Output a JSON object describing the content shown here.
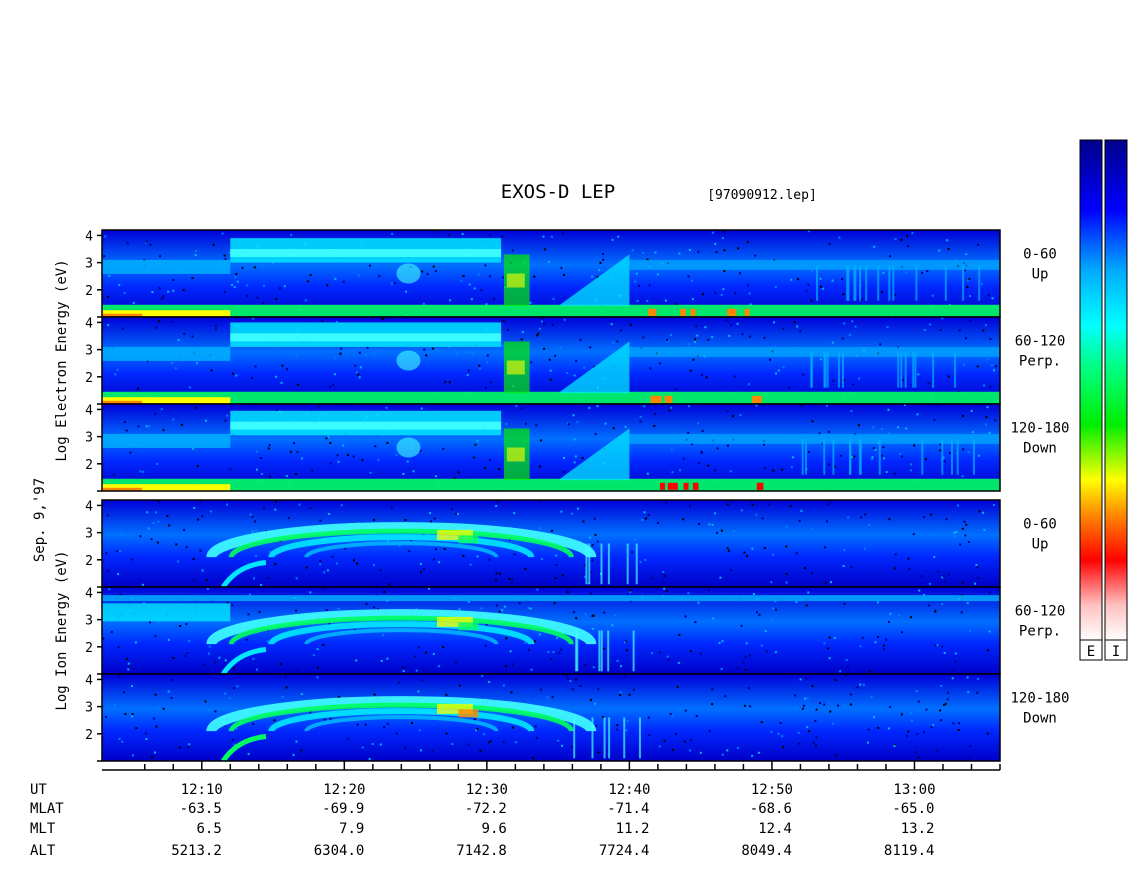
{
  "chart_data": {
    "type": "heatmap",
    "title": "EXOS-D LEP",
    "file_label": "[97090912.lep]",
    "date_label": "Sep. 9,'97",
    "x": {
      "axis": "UT",
      "tick_labels": [
        "12:10",
        "12:20",
        "12:30",
        "12:40",
        "12:50",
        "13:00"
      ],
      "tick_minutes": [
        10,
        20,
        30,
        40,
        50,
        60
      ],
      "range_minutes": [
        3,
        66
      ]
    },
    "groups": [
      {
        "species": "Electron",
        "ylabel": "Log  Electron  Energy (eV)",
        "panels": [
          {
            "angle_range": "0-60",
            "direction": "Up",
            "ylim": [
              1,
              4.2
            ],
            "yticks": [
              "2",
              "3",
              "4"
            ]
          },
          {
            "angle_range": "60-120",
            "direction": "Perp.",
            "ylim": [
              1,
              4.2
            ],
            "yticks": [
              "2",
              "3",
              "4"
            ]
          },
          {
            "angle_range": "120-180",
            "direction": "Down",
            "ylim": [
              1,
              4.2
            ],
            "yticks": [
              "2",
              "3",
              "4"
            ]
          }
        ]
      },
      {
        "species": "Ion",
        "ylabel": "Log  Ion  Energy (eV)",
        "panels": [
          {
            "angle_range": "0-60",
            "direction": "Up",
            "ylim": [
              1,
              4.2
            ],
            "yticks": [
              "2",
              "3",
              "4"
            ]
          },
          {
            "angle_range": "60-120",
            "direction": "Perp.",
            "ylim": [
              1,
              4.2
            ],
            "yticks": [
              "2",
              "3",
              "4"
            ]
          },
          {
            "angle_range": "120-180",
            "direction": "Down",
            "ylim": [
              1,
              4.2
            ],
            "yticks": [
              "2",
              "3",
              "4"
            ]
          }
        ]
      }
    ],
    "ephemeris": [
      {
        "label": "UT",
        "values": [
          "",
          "",
          "",
          "",
          "",
          ""
        ]
      },
      {
        "label": "MLAT",
        "values": [
          "-63.5",
          "-69.9",
          "-72.2",
          "-71.4",
          "-68.6",
          "-65.0"
        ]
      },
      {
        "label": "MLT",
        "values": [
          "6.5",
          "7.9",
          "9.6",
          "11.2",
          "12.4",
          "13.2"
        ]
      },
      {
        "label": "ALT",
        "values": [
          "5213.2",
          "6304.0",
          "7142.8",
          "7724.4",
          "8049.4",
          "8119.4"
        ]
      }
    ],
    "colorbars": [
      {
        "label": "E"
      },
      {
        "label": "I"
      }
    ],
    "colormap": [
      "#00008a",
      "#0000ff",
      "#00aaff",
      "#00ffff",
      "#00ff66",
      "#00ee00",
      "#ffff00",
      "#ff8800",
      "#ff0000",
      "#ffc0c0",
      "#ffffff"
    ]
  }
}
